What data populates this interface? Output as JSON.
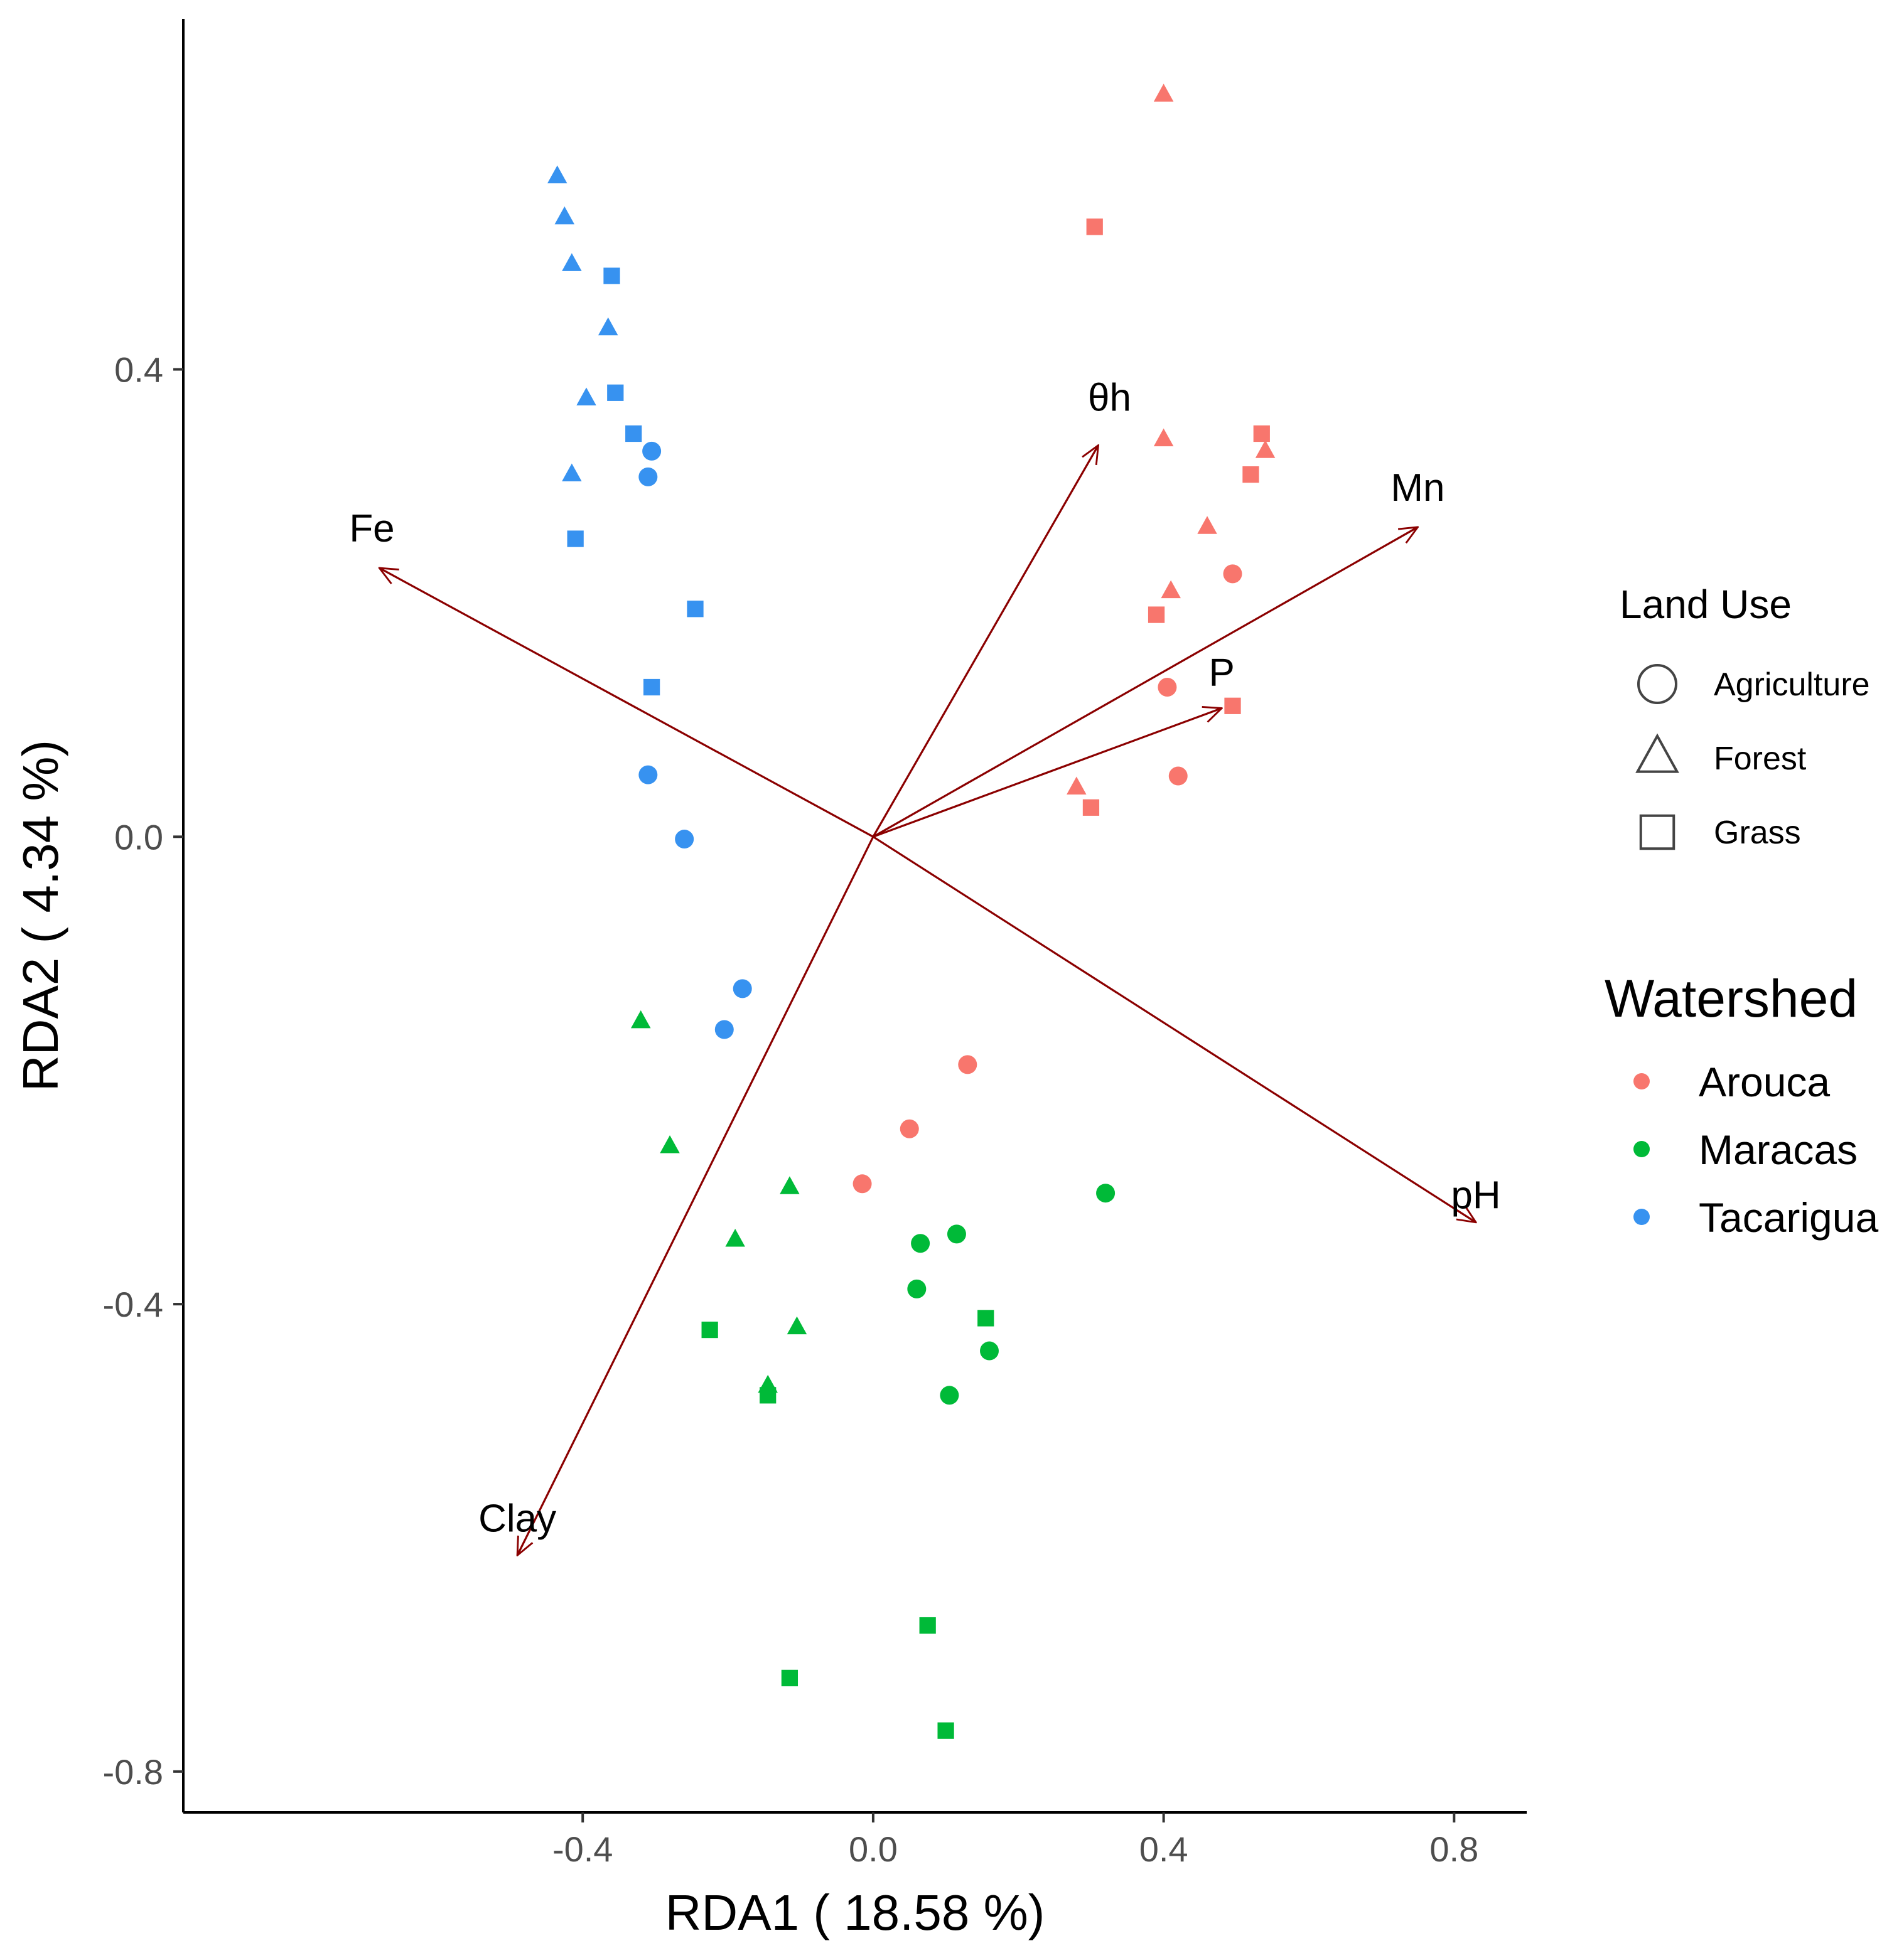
{
  "chart_data": {
    "type": "scatter",
    "subtype": "rda-biplot",
    "title": "",
    "xlabel": "RDA1 ( 18.58 %)",
    "ylabel": "RDA2 ( 4.34 %)",
    "xlim": [
      -0.95,
      0.9
    ],
    "ylim": [
      -0.835,
      0.7
    ],
    "x_ticks": [
      -0.4,
      0.0,
      0.4,
      0.8
    ],
    "x_tick_labels": [
      "-0.4",
      "0.0",
      "0.4",
      "0.8"
    ],
    "y_ticks": [
      -0.8,
      -0.4,
      0.0,
      0.4
    ],
    "y_tick_labels": [
      "-0.8",
      "-0.4",
      "0.0",
      "0.4"
    ],
    "grid": false,
    "colors": {
      "Arouca": "#f8766d",
      "Maracas": "#00ba38",
      "Tacarigua": "#3792f0",
      "arrow": "#8b0000"
    },
    "legend_land_use": {
      "title": "Land Use",
      "entries": [
        {
          "label": "Agriculture",
          "shape": "circle"
        },
        {
          "label": "Forest",
          "shape": "triangle"
        },
        {
          "label": "Grass",
          "shape": "square"
        }
      ]
    },
    "legend_watershed": {
      "title": "Watershed",
      "entries": [
        {
          "label": "Arouca",
          "color": "#f8766d"
        },
        {
          "label": "Maracas",
          "color": "#00ba38"
        },
        {
          "label": "Tacarigua",
          "color": "#3792f0"
        }
      ]
    },
    "vectors": [
      {
        "label": "Fe",
        "x": -0.68,
        "y": 0.23
      },
      {
        "label": "θh",
        "x": 0.31,
        "y": 0.335
      },
      {
        "label": "Mn",
        "x": 0.75,
        "y": 0.265
      },
      {
        "label": "P",
        "x": 0.48,
        "y": 0.11
      },
      {
        "label": "pH",
        "x": 0.83,
        "y": -0.33
      },
      {
        "label": "Clay",
        "x": -0.49,
        "y": -0.615
      }
    ],
    "points": [
      {
        "watershed": "Tacarigua",
        "land_use": "Forest",
        "x": -0.435,
        "y": 0.565
      },
      {
        "watershed": "Tacarigua",
        "land_use": "Forest",
        "x": -0.425,
        "y": 0.53
      },
      {
        "watershed": "Tacarigua",
        "land_use": "Forest",
        "x": -0.415,
        "y": 0.49
      },
      {
        "watershed": "Tacarigua",
        "land_use": "Forest",
        "x": -0.365,
        "y": 0.435
      },
      {
        "watershed": "Tacarigua",
        "land_use": "Forest",
        "x": -0.395,
        "y": 0.375
      },
      {
        "watershed": "Tacarigua",
        "land_use": "Forest",
        "x": -0.415,
        "y": 0.31
      },
      {
        "watershed": "Tacarigua",
        "land_use": "Grass",
        "x": -0.36,
        "y": 0.48
      },
      {
        "watershed": "Tacarigua",
        "land_use": "Grass",
        "x": -0.355,
        "y": 0.38
      },
      {
        "watershed": "Tacarigua",
        "land_use": "Grass",
        "x": -0.33,
        "y": 0.345
      },
      {
        "watershed": "Tacarigua",
        "land_use": "Grass",
        "x": -0.41,
        "y": 0.255
      },
      {
        "watershed": "Tacarigua",
        "land_use": "Grass",
        "x": -0.245,
        "y": 0.195
      },
      {
        "watershed": "Tacarigua",
        "land_use": "Grass",
        "x": -0.305,
        "y": 0.128
      },
      {
        "watershed": "Tacarigua",
        "land_use": "Agriculture",
        "x": -0.305,
        "y": 0.33
      },
      {
        "watershed": "Tacarigua",
        "land_use": "Agriculture",
        "x": -0.31,
        "y": 0.308
      },
      {
        "watershed": "Tacarigua",
        "land_use": "Agriculture",
        "x": -0.31,
        "y": 0.053
      },
      {
        "watershed": "Tacarigua",
        "land_use": "Agriculture",
        "x": -0.26,
        "y": -0.002
      },
      {
        "watershed": "Tacarigua",
        "land_use": "Agriculture",
        "x": -0.18,
        "y": -0.13
      },
      {
        "watershed": "Tacarigua",
        "land_use": "Agriculture",
        "x": -0.205,
        "y": -0.165
      },
      {
        "watershed": "Arouca",
        "land_use": "Forest",
        "x": 0.4,
        "y": 0.635
      },
      {
        "watershed": "Arouca",
        "land_use": "Forest",
        "x": 0.4,
        "y": 0.34
      },
      {
        "watershed": "Arouca",
        "land_use": "Forest",
        "x": 0.54,
        "y": 0.33
      },
      {
        "watershed": "Arouca",
        "land_use": "Forest",
        "x": 0.46,
        "y": 0.265
      },
      {
        "watershed": "Arouca",
        "land_use": "Forest",
        "x": 0.41,
        "y": 0.21
      },
      {
        "watershed": "Arouca",
        "land_use": "Forest",
        "x": 0.28,
        "y": 0.042
      },
      {
        "watershed": "Arouca",
        "land_use": "Grass",
        "x": 0.305,
        "y": 0.522
      },
      {
        "watershed": "Arouca",
        "land_use": "Grass",
        "x": 0.535,
        "y": 0.345
      },
      {
        "watershed": "Arouca",
        "land_use": "Grass",
        "x": 0.52,
        "y": 0.31
      },
      {
        "watershed": "Arouca",
        "land_use": "Grass",
        "x": 0.39,
        "y": 0.19
      },
      {
        "watershed": "Arouca",
        "land_use": "Grass",
        "x": 0.495,
        "y": 0.112
      },
      {
        "watershed": "Arouca",
        "land_use": "Grass",
        "x": 0.3,
        "y": 0.025
      },
      {
        "watershed": "Arouca",
        "land_use": "Agriculture",
        "x": 0.495,
        "y": 0.225
      },
      {
        "watershed": "Arouca",
        "land_use": "Agriculture",
        "x": 0.405,
        "y": 0.128
      },
      {
        "watershed": "Arouca",
        "land_use": "Agriculture",
        "x": 0.42,
        "y": 0.052
      },
      {
        "watershed": "Arouca",
        "land_use": "Agriculture",
        "x": 0.13,
        "y": -0.195
      },
      {
        "watershed": "Arouca",
        "land_use": "Agriculture",
        "x": 0.05,
        "y": -0.25
      },
      {
        "watershed": "Arouca",
        "land_use": "Agriculture",
        "x": -0.015,
        "y": -0.297
      },
      {
        "watershed": "Maracas",
        "land_use": "Forest",
        "x": -0.32,
        "y": -0.158
      },
      {
        "watershed": "Maracas",
        "land_use": "Forest",
        "x": -0.28,
        "y": -0.265
      },
      {
        "watershed": "Maracas",
        "land_use": "Forest",
        "x": -0.115,
        "y": -0.3
      },
      {
        "watershed": "Maracas",
        "land_use": "Forest",
        "x": -0.19,
        "y": -0.345
      },
      {
        "watershed": "Maracas",
        "land_use": "Forest",
        "x": -0.105,
        "y": -0.42
      },
      {
        "watershed": "Maracas",
        "land_use": "Forest",
        "x": -0.145,
        "y": -0.47
      },
      {
        "watershed": "Maracas",
        "land_use": "Grass",
        "x": -0.225,
        "y": -0.422
      },
      {
        "watershed": "Maracas",
        "land_use": "Grass",
        "x": -0.145,
        "y": -0.478
      },
      {
        "watershed": "Maracas",
        "land_use": "Grass",
        "x": 0.155,
        "y": -0.412
      },
      {
        "watershed": "Maracas",
        "land_use": "Grass",
        "x": 0.075,
        "y": -0.675
      },
      {
        "watershed": "Maracas",
        "land_use": "Grass",
        "x": -0.115,
        "y": -0.72
      },
      {
        "watershed": "Maracas",
        "land_use": "Grass",
        "x": 0.1,
        "y": -0.765
      },
      {
        "watershed": "Maracas",
        "land_use": "Agriculture",
        "x": 0.32,
        "y": -0.305
      },
      {
        "watershed": "Maracas",
        "land_use": "Agriculture",
        "x": 0.115,
        "y": -0.34
      },
      {
        "watershed": "Maracas",
        "land_use": "Agriculture",
        "x": 0.065,
        "y": -0.348
      },
      {
        "watershed": "Maracas",
        "land_use": "Agriculture",
        "x": 0.06,
        "y": -0.387
      },
      {
        "watershed": "Maracas",
        "land_use": "Agriculture",
        "x": 0.16,
        "y": -0.44
      },
      {
        "watershed": "Maracas",
        "land_use": "Agriculture",
        "x": 0.105,
        "y": -0.478
      }
    ]
  }
}
